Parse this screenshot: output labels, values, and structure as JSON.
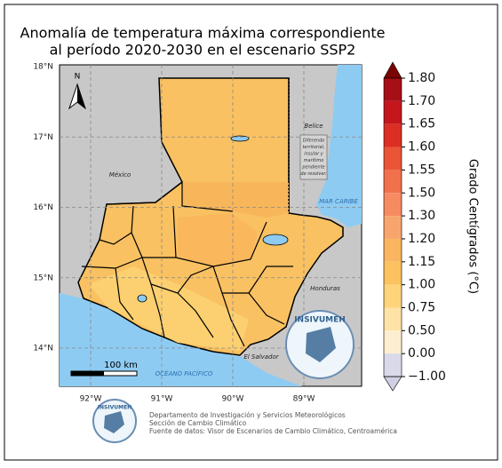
{
  "title": [
    "Anomalía de temperatura máxima correspondiente",
    "al período 2020-2030 en el escenario SSP2"
  ],
  "map": {
    "lat_labels": [
      "18°N",
      "17°N",
      "16°N",
      "15°N",
      "14°N"
    ],
    "lon_labels": [
      "92°W",
      "91°W",
      "90°W",
      "89°W"
    ],
    "north": "N",
    "places": {
      "mexico": "México",
      "belice": "Belice",
      "honduras": "Honduras",
      "el_salvador": "El Salvador",
      "caribe": "MAR CARIBE",
      "pacifico": "OCÉANO PACÍFICO"
    },
    "dispute": [
      "Diferendo",
      "territorial,",
      "insular y",
      "marítimo",
      "pendiente",
      "de resolver."
    ],
    "scale": "100 km",
    "logo": "INSIVUMEH"
  },
  "colorbar": {
    "title": "Grado Centígrados (°C)",
    "ticks": [
      "1.80",
      "1.70",
      "1.65",
      "1.60",
      "1.55",
      "1.50",
      "1.30",
      "1.20",
      "1.15",
      "1.00",
      "0.75",
      "0.50",
      "0.00",
      "−1.00"
    ],
    "colors": [
      "#7a0403",
      "#a50f15",
      "#c4161c",
      "#dc2f24",
      "#ea5437",
      "#f2714d",
      "#f68b62",
      "#f8a56d",
      "#fab560",
      "#fbc25f",
      "#fdd47a",
      "#fde3a6",
      "#feeed1",
      "#d9d9ea",
      "#cfcfe4"
    ]
  },
  "footer": [
    "Departamento de Investigación y Servicios Meteorológicos",
    "Sección de Cambio Climático",
    "Fuente de datos: Visor de Escenarios de Cambio Climático, Centroamérica"
  ]
}
